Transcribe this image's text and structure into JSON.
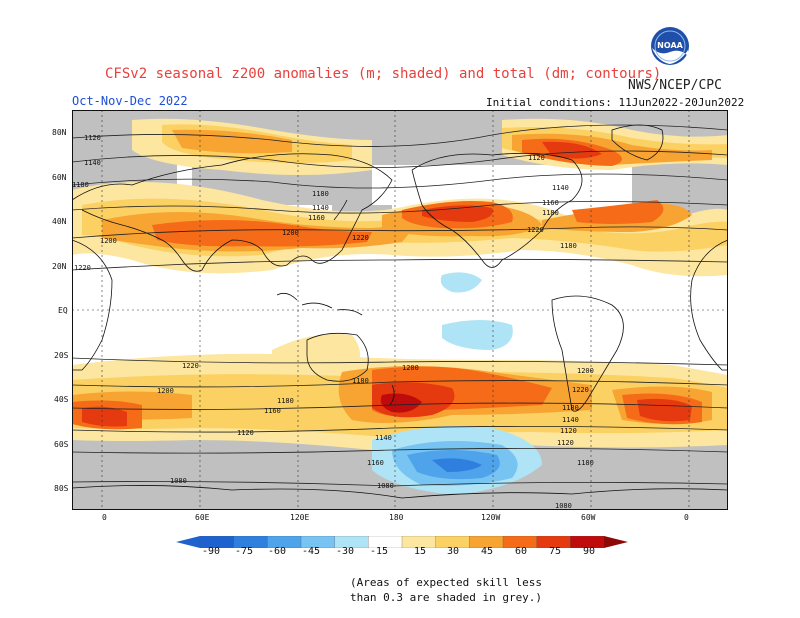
{
  "header": {
    "title": "CFSv2 seasonal z200 anomalies (m; shaded) and total (dm; contours)",
    "org": "NWS/NCEP/CPC",
    "season": "Oct-Nov-Dec 2022",
    "initial_conditions": "Initial conditions: 11Jun2022-20Jun2022",
    "logo_text": "NOAA"
  },
  "map": {
    "projection": "equirectangular, 0E to 360E",
    "lat_labels": [
      "80N",
      "60N",
      "40N",
      "20N",
      "EQ",
      "20S",
      "40S",
      "60S",
      "80S"
    ],
    "lon_labels": [
      "0",
      "60E",
      "120E",
      "180",
      "120W",
      "60W",
      "0"
    ],
    "contour_labels": [
      "1120",
      "1140",
      "1160",
      "1180",
      "1200",
      "1220",
      "1080",
      "1120",
      "1140",
      "1160",
      "1180",
      "1200",
      "1220",
      "1140",
      "1160",
      "1180",
      "1200",
      "1220",
      "1140",
      "1160",
      "1180",
      "1200",
      "1220",
      "1080",
      "1120",
      "1140",
      "1160",
      "1180"
    ],
    "colors": {
      "grey_low_skill": "#c0c0c0",
      "pos_15": "#fde6a0",
      "pos_30": "#fbd163",
      "pos_45": "#f8a432",
      "pos_60": "#f56b18",
      "pos_75": "#e53a10",
      "pos_90": "#bf0b0b",
      "neg_15": "#aee4f5",
      "neg_30": "#77c3f2",
      "neg_45": "#4ea3ea",
      "neg_60": "#2f7fdf",
      "coast": "#111111",
      "contour": "#222222"
    }
  },
  "colorbar": {
    "labels": [
      "-90",
      "-75",
      "-60",
      "-45",
      "-30",
      "-15",
      "15",
      "30",
      "45",
      "60",
      "75",
      "90"
    ],
    "colors": [
      "#1d62cf",
      "#2f7fdf",
      "#4ea3ea",
      "#77c3f2",
      "#aee4f5",
      "#ffffff",
      "#fde6a0",
      "#fbd163",
      "#f8a432",
      "#f56b18",
      "#e53a10",
      "#bf0b0b"
    ]
  },
  "footnote": {
    "line1": "(Areas of expected skill less",
    "line2": "than 0.3 are shaded in grey.)"
  }
}
